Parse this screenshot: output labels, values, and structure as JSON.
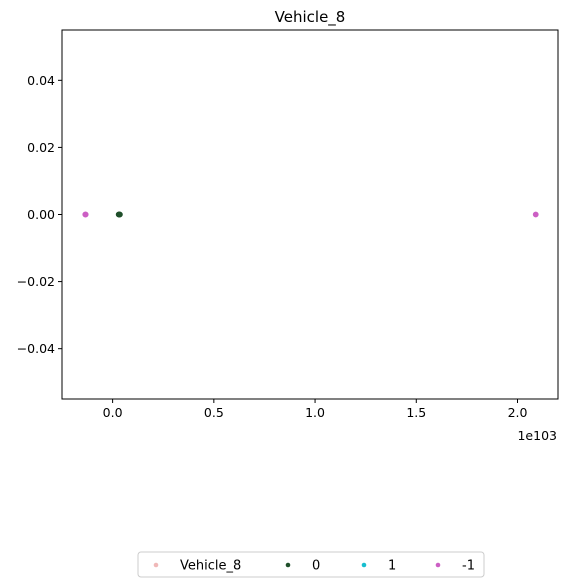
{
  "chart_data": {
    "type": "scatter",
    "title": "Vehicle_8",
    "xlabel": "",
    "ylabel": "",
    "x_offset_text": "1e103",
    "xlim": [
      -0.25,
      2.2
    ],
    "ylim": [
      -0.055,
      0.055
    ],
    "x_ticks": [
      0.0,
      0.5,
      1.0,
      1.5,
      2.0
    ],
    "x_tick_labels": [
      "0.0",
      "0.5",
      "1.0",
      "1.5",
      "2.0"
    ],
    "y_ticks": [
      0.04,
      0.02,
      0.0,
      -0.02,
      -0.04
    ],
    "y_tick_labels": [
      "0.04",
      "0.02",
      "0.00",
      "−0.02",
      "−0.04"
    ],
    "grid": false,
    "legend_position": "bottom-center",
    "series": [
      {
        "name": "Vehicle_8",
        "color": "#f0b8b8",
        "points": []
      },
      {
        "name": "0",
        "color": "#1f4f2a",
        "points": [
          {
            "x": 0.03,
            "y": 0.0
          },
          {
            "x": 0.032,
            "y": 0.0
          },
          {
            "x": 0.034,
            "y": 0.0
          },
          {
            "x": 0.036,
            "y": 0.0
          }
        ]
      },
      {
        "name": "1",
        "color": "#17becf",
        "points": []
      },
      {
        "name": "-1",
        "color": "#cc5fc4",
        "points": [
          {
            "x": -0.135,
            "y": 0.0
          },
          {
            "x": -0.133,
            "y": 0.0
          },
          {
            "x": 2.09,
            "y": 0.0
          }
        ]
      }
    ]
  }
}
